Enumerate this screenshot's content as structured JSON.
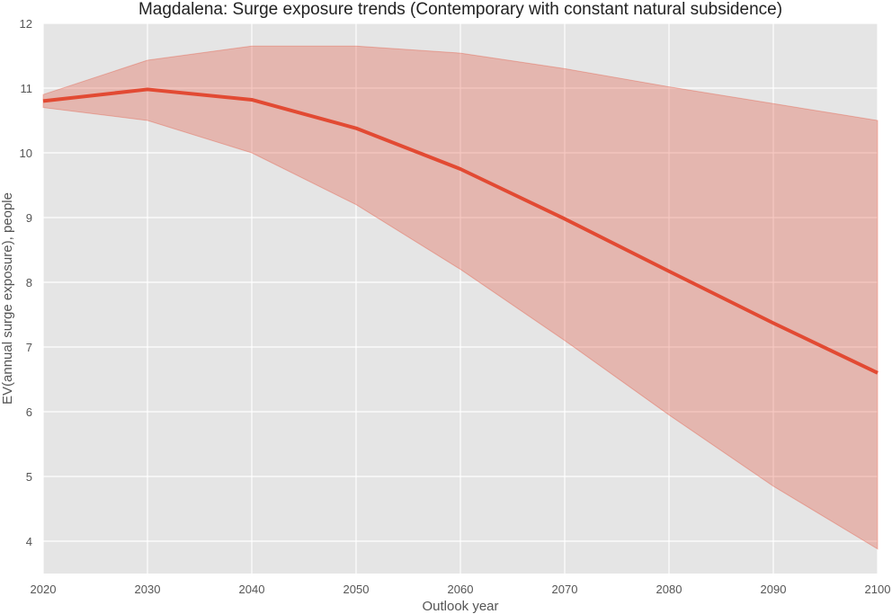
{
  "chart_data": {
    "type": "line",
    "title": "Magdalena: Surge exposure trends (Contemporary with constant natural subsidence)",
    "xlabel": "Outlook year",
    "ylabel": "EV(annual surge exposure), people",
    "x": [
      2020,
      2030,
      2040,
      2050,
      2060,
      2070,
      2080,
      2090,
      2100
    ],
    "xlim": [
      2020,
      2100
    ],
    "ylim": [
      3.5,
      12
    ],
    "xticks": [
      "2020",
      "2030",
      "2040",
      "2050",
      "2060",
      "2070",
      "2080",
      "2090",
      "2100"
    ],
    "yticks": [
      "4",
      "5",
      "6",
      "7",
      "8",
      "9",
      "10",
      "11",
      "12"
    ],
    "grid": true,
    "series": [
      {
        "values": [
          10.8,
          10.98,
          10.82,
          10.38,
          9.75,
          8.98,
          8.17,
          7.37,
          6.6
        ],
        "lower": [
          10.7,
          10.5,
          10.0,
          9.2,
          8.2,
          7.1,
          5.95,
          4.85,
          3.88
        ],
        "upper": [
          10.9,
          11.43,
          11.65,
          11.65,
          11.54,
          11.3,
          11.02,
          10.76,
          10.5
        ],
        "color": "#e24a33",
        "band_color": "#e24a33"
      }
    ],
    "colors": {
      "plot_background": "#e5e5e5",
      "grid": "#ffffff"
    }
  }
}
